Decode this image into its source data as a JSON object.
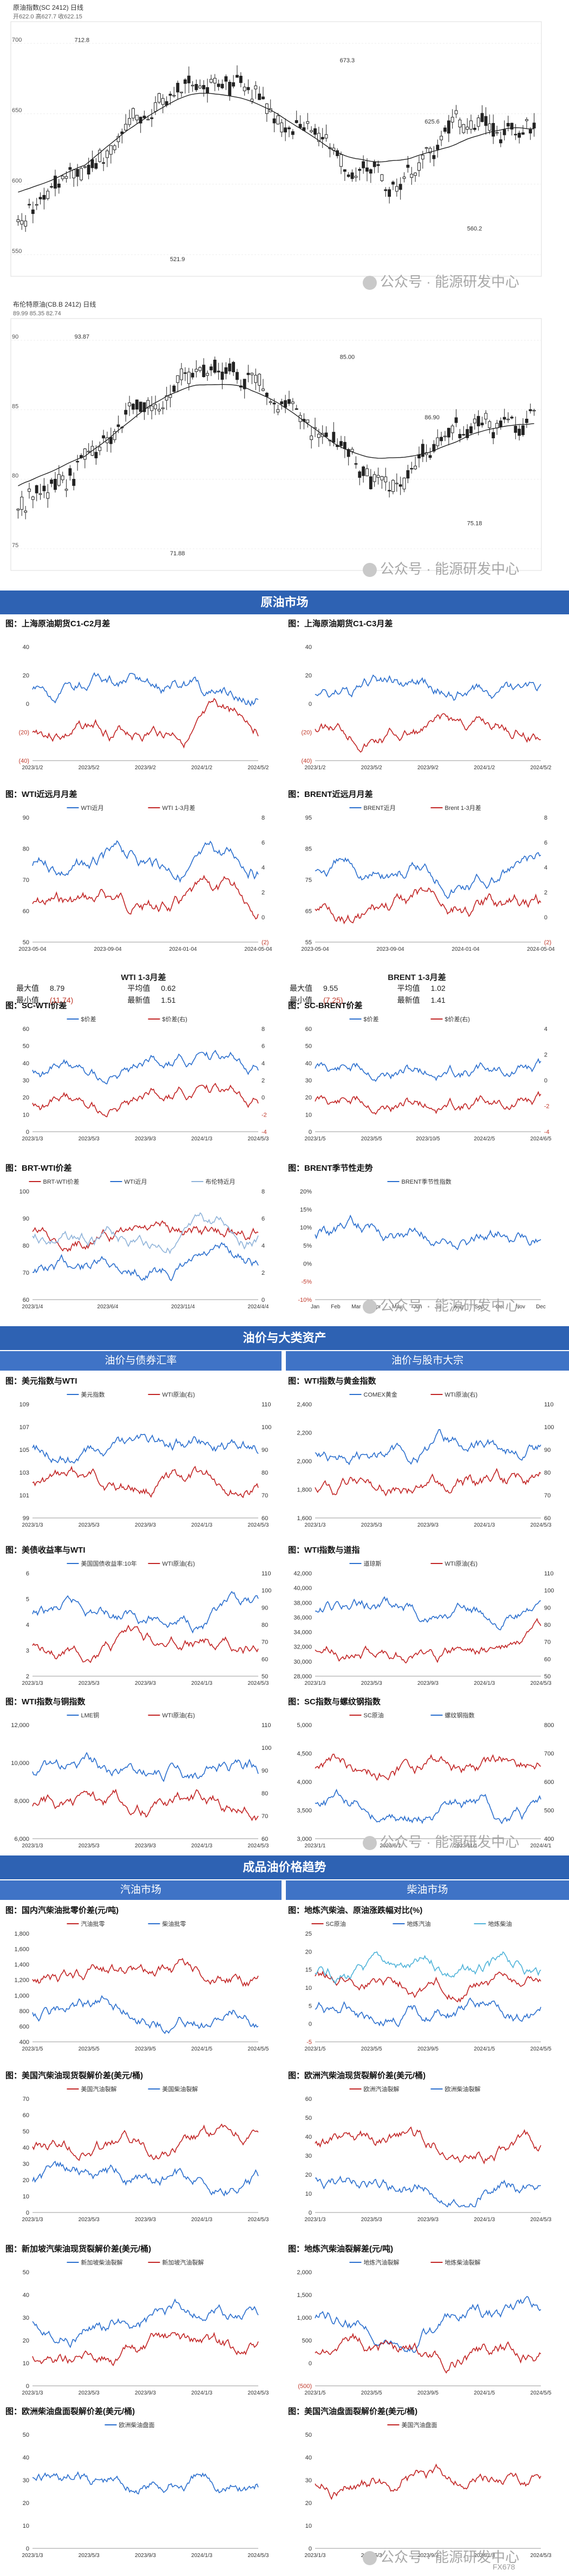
{
  "kline": [
    {
      "legend": "原油指数(SC 2412) 日线",
      "info": "开622.0 高627.7 收622.15",
      "axis_ticks": [
        "700",
        "650",
        "600",
        "550"
      ],
      "labels": [
        {
          "t": "712.8"
        },
        {
          "t": "673.3"
        },
        {
          "t": "625.6"
        },
        {
          "t": "560.2"
        },
        {
          "t": "521.9"
        }
      ]
    },
    {
      "legend": "布伦特原油(CB.B 2412) 日线",
      "info": "89.99 85.35 82.74",
      "axis_ticks": [
        "90",
        "85",
        "80",
        "75"
      ],
      "labels": [
        {
          "t": "93.87"
        },
        {
          "t": "85.00"
        },
        {
          "t": "86.90"
        },
        {
          "t": "75.18"
        },
        {
          "t": "71.88"
        }
      ]
    }
  ],
  "watermark": "公众号 · 能源研发中心",
  "sections": {
    "s1": "原油市场",
    "s2": "油价与大类资产",
    "s2a": "油价与债券汇率",
    "s2b": "油价与股市大宗",
    "s3": "成品油价格趋势",
    "s3a": "汽油市场",
    "s3b": "柴油市场"
  },
  "stats": {
    "left": {
      "title": "WTI 1-3月差",
      "rows": [
        [
          "最大值",
          "8.79",
          "平均值",
          "0.62"
        ],
        [
          "最小值",
          "(11.74)",
          "最新值",
          "1.51"
        ]
      ]
    },
    "right": {
      "title": "BRENT 1-3月差",
      "rows": [
        [
          "最大值",
          "9.55",
          "平均值",
          "1.02"
        ],
        [
          "最小值",
          "(7.25)",
          "最新值",
          "1.41"
        ]
      ]
    }
  },
  "charts": [
    {
      "title": "图：上海原油期货C1-C2月差",
      "chart_data": {
        "type": "line",
        "x": [
          "2023/1/2",
          "2023/5/2",
          "2023/9/2",
          "2024/1/2",
          "2024/5/2"
        ],
        "ylim_right": [
          -40,
          40
        ],
        "yticks": [
          "40",
          "20",
          "0",
          "(20)",
          "(40)"
        ],
        "series": [
          {
            "color": "#2b6fce",
            "seed": 1
          },
          {
            "color": "#c22525",
            "seed": 2
          }
        ]
      }
    },
    {
      "title": "图：上海原油期货C1-C3月差",
      "chart_data": {
        "type": "line",
        "x": [
          "2023/1/2",
          "2023/5/2",
          "2023/9/2",
          "2024/1/2",
          "2024/5/2"
        ],
        "yticks": [
          "40",
          "20",
          "0",
          "(20)",
          "(40)"
        ],
        "series": [
          {
            "color": "#2b6fce",
            "seed": 3
          },
          {
            "color": "#c22525",
            "seed": 4
          }
        ]
      }
    },
    {
      "title": "图：WTI近远月月差",
      "chart_data": {
        "type": "line",
        "x": [
          "2023-05-04",
          "2023-09-04",
          "2024-01-04",
          "2024-05-04"
        ],
        "yticks": [
          "90",
          "80",
          "70",
          "60",
          "50"
        ],
        "yticks_right": [
          "8",
          "6",
          "4",
          "2",
          "0",
          "(2)"
        ],
        "series": [
          {
            "name": "WTI近月",
            "color": "#2b6fce",
            "seed": 5
          },
          {
            "name": "WTI 1-3月差",
            "color": "#c22525",
            "seed": 6
          }
        ]
      }
    },
    {
      "title": "图：BRENT近远月月差",
      "chart_data": {
        "type": "line",
        "x": [
          "2023-05-04",
          "2023-09-04",
          "2024-01-04",
          "2024-05-04"
        ],
        "yticks": [
          "95",
          "85",
          "75",
          "65",
          "55"
        ],
        "yticks_right": [
          "8",
          "6",
          "4",
          "2",
          "0",
          "(2)"
        ],
        "series": [
          {
            "name": "BRENT近月",
            "color": "#2b6fce",
            "seed": 7
          },
          {
            "name": "Brent 1-3月差",
            "color": "#c22525",
            "seed": 8
          }
        ]
      }
    },
    {
      "title": "图：SC-WTI价差",
      "chart_data": {
        "type": "line",
        "x": [
          "2023/1/3",
          "2023/5/3",
          "2023/9/3",
          "2024/1/3",
          "2024/5/3"
        ],
        "yticks": [
          "60",
          "50",
          "40",
          "30",
          "20",
          "10",
          "0"
        ],
        "yticks_right": [
          "8",
          "6",
          "4",
          "2",
          "0",
          "-2",
          "-4"
        ],
        "series": [
          {
            "name": "$价差",
            "color": "#2b6fce",
            "seed": 9
          },
          {
            "name": "$价差(右)",
            "color": "#c22525",
            "seed": 9
          }
        ]
      }
    },
    {
      "title": "图：SC-BRENT价差",
      "chart_data": {
        "type": "line",
        "x": [
          "2023/1/5",
          "2023/5/5",
          "2023/10/5",
          "2024/2/5",
          "2024/6/5"
        ],
        "yticks": [
          "60",
          "50",
          "40",
          "30",
          "20",
          "10",
          "0"
        ],
        "yticks_right": [
          "4",
          "2",
          "0",
          "-2",
          "-4"
        ],
        "series": [
          {
            "name": "$价差",
            "color": "#2b6fce",
            "seed": 10
          },
          {
            "name": "$价差(右)",
            "color": "#c22525",
            "seed": 10
          }
        ]
      }
    },
    {
      "title": "图：BRT-WTI价差",
      "chart_data": {
        "type": "line",
        "x": [
          "2023/1/4",
          "2023/6/4",
          "2023/11/4",
          "2024/4/4"
        ],
        "yticks": [
          "100",
          "90",
          "80",
          "70",
          "60"
        ],
        "yticks_right": [
          "8",
          "6",
          "4",
          "2",
          "0"
        ],
        "series": [
          {
            "name": "BRT-WTI价差",
            "color": "#c22525",
            "seed": 11
          },
          {
            "name": "WTI近月",
            "color": "#2b6fce",
            "seed": 12
          },
          {
            "name": "布伦特近月",
            "color": "#8fb3d9",
            "seed": 13
          }
        ]
      }
    },
    {
      "title": "图：BRENT季节性走势",
      "chart_data": {
        "type": "line",
        "x": [
          "Jan",
          "Feb",
          "Mar",
          "Apr",
          "May",
          "Jun",
          "Jul",
          "Aug",
          "Sep",
          "Oct",
          "Nov",
          "Dec"
        ],
        "yticks": [
          "20%",
          "15%",
          "10%",
          "5%",
          "0%",
          "-5%",
          "-10%"
        ],
        "series": [
          {
            "name": "BRENT季节性指数",
            "color": "#2b6fce",
            "seed": 14
          }
        ]
      }
    },
    {
      "title": "图：美元指数与WTI",
      "chart_data": {
        "type": "line",
        "x": [
          "2023/1/3",
          "2023/5/3",
          "2023/9/3",
          "2024/1/3",
          "2024/5/3"
        ],
        "yticks": [
          "109",
          "107",
          "105",
          "103",
          "101",
          "99"
        ],
        "yticks_right": [
          "110",
          "100",
          "90",
          "80",
          "70",
          "60"
        ],
        "series": [
          {
            "name": "美元指数",
            "color": "#2b6fce",
            "seed": 15
          },
          {
            "name": "WTI原油(右)",
            "color": "#c22525",
            "seed": 16
          }
        ]
      }
    },
    {
      "title": "图：WTI指数与黄金指数",
      "chart_data": {
        "type": "line",
        "x": [
          "2023/1/3",
          "2023/5/3",
          "2023/9/3",
          "2024/1/3",
          "2024/5/3"
        ],
        "yticks": [
          "2,400",
          "2,200",
          "2,000",
          "1,800",
          "1,600"
        ],
        "yticks_right": [
          "110",
          "100",
          "90",
          "80",
          "70",
          "60"
        ],
        "series": [
          {
            "name": "COMEX黄金",
            "color": "#2b6fce",
            "seed": 17
          },
          {
            "name": "WTI原油(右)",
            "color": "#c22525",
            "seed": 18
          }
        ]
      }
    },
    {
      "title": "图：美债收益率与WTI",
      "chart_data": {
        "type": "line",
        "x": [
          "2023/1/3",
          "2023/5/3",
          "2023/9/3",
          "2024/1/3",
          "2024/5/3"
        ],
        "yticks": [
          "6",
          "5",
          "4",
          "3",
          "2"
        ],
        "yticks_right": [
          "110",
          "100",
          "90",
          "80",
          "70",
          "60",
          "50"
        ],
        "series": [
          {
            "name": "美国国债收益率:10年",
            "color": "#2b6fce",
            "seed": 19
          },
          {
            "name": "WTI原油(右)",
            "color": "#c22525",
            "seed": 20
          }
        ]
      }
    },
    {
      "title": "图：WTI指数与道指",
      "chart_data": {
        "type": "line",
        "x": [
          "2023/1/3",
          "2023/5/3",
          "2023/9/3",
          "2024/1/3",
          "2024/5/3"
        ],
        "yticks": [
          "42,000",
          "40,000",
          "38,000",
          "36,000",
          "34,000",
          "32,000",
          "30,000",
          "28,000"
        ],
        "yticks_right": [
          "110",
          "100",
          "90",
          "80",
          "70",
          "60",
          "50"
        ],
        "series": [
          {
            "name": "道琼斯",
            "color": "#2b6fce",
            "seed": 21
          },
          {
            "name": "WTI原油(右)",
            "color": "#c22525",
            "seed": 22
          }
        ]
      }
    },
    {
      "title": "图：WTI指数与铜指数",
      "chart_data": {
        "type": "line",
        "x": [
          "2023/1/3",
          "2023/5/3",
          "2023/9/3",
          "2024/1/3",
          "2024/5/3"
        ],
        "yticks": [
          "12,000",
          "10,000",
          "8,000",
          "6,000"
        ],
        "yticks_right": [
          "110",
          "100",
          "90",
          "80",
          "70",
          "60"
        ],
        "series": [
          {
            "name": "LME铜",
            "color": "#2b6fce",
            "seed": 23
          },
          {
            "name": "WTI原油(右)",
            "color": "#c22525",
            "seed": 24
          }
        ]
      }
    },
    {
      "title": "图：SC指数与螺纹钢指数",
      "chart_data": {
        "type": "line",
        "x": [
          "2023/1/1",
          "2023/6/1",
          "2023/11/1",
          "2024/4/1"
        ],
        "yticks": [
          "5,000",
          "4,500",
          "4,000",
          "3,500",
          "3,000"
        ],
        "yticks_right": [
          "800",
          "700",
          "600",
          "500",
          "400"
        ],
        "series": [
          {
            "name": "SC原油",
            "color": "#c22525",
            "seed": 25
          },
          {
            "name": "螺纹钢指数",
            "color": "#2b6fce",
            "seed": 26
          }
        ]
      }
    },
    {
      "title": "图：国内汽柴油批零价差(元/吨)",
      "chart_data": {
        "type": "line",
        "x": [
          "2023/1/5",
          "2023/5/5",
          "2023/9/5",
          "2024/1/5",
          "2024/5/5"
        ],
        "yticks": [
          "1,800",
          "1,600",
          "1,400",
          "1,200",
          "1,000",
          "800",
          "600",
          "400"
        ],
        "series": [
          {
            "name": "汽油批零",
            "color": "#c22525",
            "seed": 27
          },
          {
            "name": "柴油批零",
            "color": "#2b6fce",
            "seed": 28
          }
        ]
      }
    },
    {
      "title": "图：地炼汽柴油、原油涨跌幅对比(%)",
      "chart_data": {
        "type": "line",
        "x": [
          "2023/1/5",
          "2023/5/5",
          "2023/9/5",
          "2024/1/5",
          "2024/5/5"
        ],
        "yticks": [
          "25",
          "20",
          "15",
          "10",
          "5",
          "0",
          "-5"
        ],
        "series": [
          {
            "name": "SC原油",
            "color": "#c22525",
            "seed": 29
          },
          {
            "name": "地炼汽油",
            "color": "#2b6fce",
            "seed": 30
          },
          {
            "name": "地炼柴油",
            "color": "#4fb3d9",
            "seed": 31
          }
        ]
      }
    },
    {
      "title": "图：美国汽柴油现货裂解价差(美元/桶)",
      "chart_data": {
        "type": "line",
        "x": [
          "2023/1/3",
          "2023/5/3",
          "2023/9/3",
          "2024/1/3",
          "2024/5/3"
        ],
        "yticks": [
          "70",
          "60",
          "50",
          "40",
          "30",
          "20",
          "10",
          "0"
        ],
        "series": [
          {
            "name": "美国汽油裂解",
            "color": "#c22525",
            "seed": 32
          },
          {
            "name": "美国柴油裂解",
            "color": "#2b6fce",
            "seed": 33
          }
        ]
      }
    },
    {
      "title": "图：欧洲汽柴油现货裂解价差(美元/桶)",
      "chart_data": {
        "type": "line",
        "x": [
          "2023/1/3",
          "2023/5/3",
          "2023/9/3",
          "2024/1/3",
          "2024/5/3"
        ],
        "yticks": [
          "60",
          "50",
          "40",
          "30",
          "20",
          "10",
          "0"
        ],
        "series": [
          {
            "name": "欧洲汽油裂解",
            "color": "#c22525",
            "seed": 34
          },
          {
            "name": "欧洲柴油裂解",
            "color": "#2b6fce",
            "seed": 35
          }
        ]
      }
    },
    {
      "title": "图：新加坡汽柴油现货裂解价差(美元/桶)",
      "chart_data": {
        "type": "line",
        "x": [
          "2023/1/3",
          "2023/5/3",
          "2023/9/3",
          "2024/1/3",
          "2024/5/3"
        ],
        "yticks": [
          "50",
          "40",
          "30",
          "20",
          "10",
          "0"
        ],
        "series": [
          {
            "name": "新加坡柴油裂解",
            "color": "#2b6fce",
            "seed": 36
          },
          {
            "name": "新加坡汽油裂解",
            "color": "#c22525",
            "seed": 37
          }
        ]
      }
    },
    {
      "title": "图：地炼汽柴油裂解差(元/吨)",
      "chart_data": {
        "type": "line",
        "x": [
          "2023/1/5",
          "2023/5/5",
          "2023/9/5",
          "2024/1/5",
          "2024/5/5"
        ],
        "yticks": [
          "2,000",
          "1,500",
          "1,000",
          "500",
          "0",
          "(500)"
        ],
        "series": [
          {
            "name": "地炼汽油裂解",
            "color": "#2b6fce",
            "seed": 38
          },
          {
            "name": "地炼柴油裂解",
            "color": "#c22525",
            "seed": 39
          }
        ]
      }
    },
    {
      "title": "图：欧洲柴油盘面裂解价差(美元/桶)",
      "chart_data": {
        "type": "line",
        "x": [
          "2023/1/3",
          "2023/5/3",
          "2023/9/3",
          "2024/1/3",
          "2024/5/3"
        ],
        "yticks": [
          "50",
          "40",
          "30",
          "20",
          "10",
          "0"
        ],
        "series": [
          {
            "name": "欧洲柴油盘面",
            "color": "#2b6fce",
            "seed": 40
          }
        ]
      }
    },
    {
      "title": "图：美国汽油盘面裂解价差(美元/桶)",
      "chart_data": {
        "type": "line",
        "x": [
          "2023/1/3",
          "2023/5/3",
          "2023/9/3",
          "2024/1/3",
          "2024/5/3"
        ],
        "yticks": [
          "50",
          "40",
          "30",
          "20",
          "10",
          "0"
        ],
        "series": [
          {
            "name": "美国汽油盘面",
            "color": "#c22525",
            "seed": 41
          }
        ]
      }
    }
  ],
  "page_number": "FX678"
}
